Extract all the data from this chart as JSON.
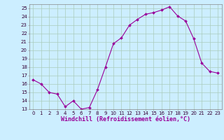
{
  "x": [
    0,
    1,
    2,
    3,
    4,
    5,
    6,
    7,
    8,
    9,
    10,
    11,
    12,
    13,
    14,
    15,
    16,
    17,
    18,
    19,
    20,
    21,
    22,
    23
  ],
  "y": [
    16.5,
    16.0,
    15.0,
    14.8,
    13.3,
    14.0,
    13.0,
    13.2,
    15.3,
    18.0,
    20.8,
    21.5,
    23.0,
    23.7,
    24.3,
    24.5,
    24.8,
    25.2,
    24.1,
    23.5,
    21.4,
    18.5,
    17.5,
    17.3
  ],
  "line_color": "#990099",
  "marker_color": "#990099",
  "bg_color": "#cceeff",
  "grid_color": "#aaccbb",
  "xlabel": "Windchill (Refroidissement éolien,°C)",
  "xlim": [
    -0.5,
    23.5
  ],
  "ylim": [
    13,
    25.5
  ],
  "yticks": [
    13,
    14,
    15,
    16,
    17,
    18,
    19,
    20,
    21,
    22,
    23,
    24,
    25
  ],
  "xticks": [
    0,
    1,
    2,
    3,
    4,
    5,
    6,
    7,
    8,
    9,
    10,
    11,
    12,
    13,
    14,
    15,
    16,
    17,
    18,
    19,
    20,
    21,
    22,
    23
  ],
  "tick_fontsize": 5.0,
  "xlabel_fontsize": 6.0,
  "line_width": 0.8,
  "marker_size": 2.0
}
